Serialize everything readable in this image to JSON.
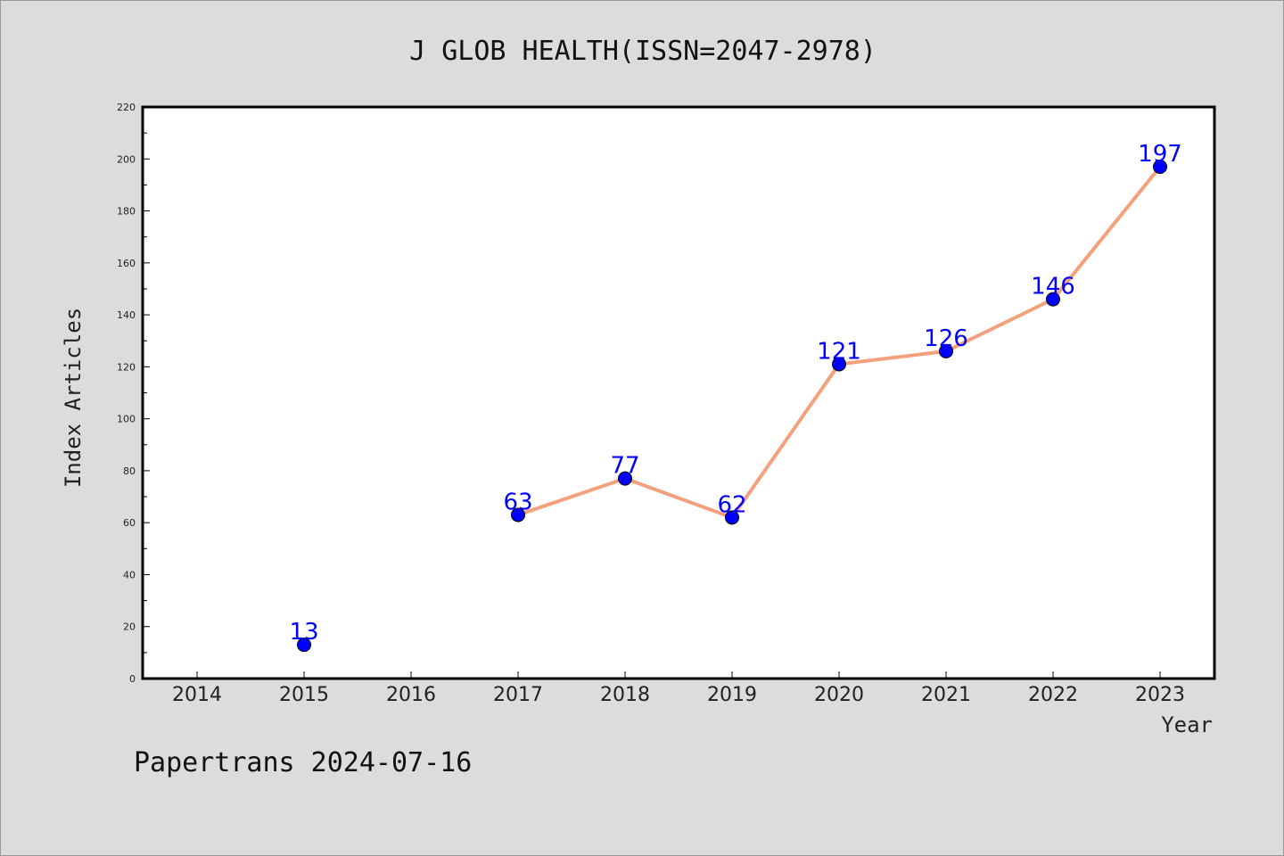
{
  "chart_data": {
    "type": "line",
    "title": "J GLOB HEALTH(ISSN=2047-2978)",
    "xlabel": "Year",
    "ylabel": "Index Articles",
    "categories": [
      "2014",
      "2015",
      "2016",
      "2017",
      "2018",
      "2019",
      "2020",
      "2021",
      "2022",
      "2023"
    ],
    "ylim": [
      0,
      220
    ],
    "yticks": [
      0,
      20,
      40,
      60,
      80,
      100,
      120,
      140,
      160,
      180,
      200,
      220
    ],
    "grid": false,
    "series": [
      {
        "points": [
          {
            "x": "2015",
            "y": 13,
            "label": "13"
          },
          {
            "x": "2017",
            "y": 63,
            "label": "63"
          },
          {
            "x": "2018",
            "y": 77,
            "label": "77"
          },
          {
            "x": "2019",
            "y": 62,
            "label": "62"
          },
          {
            "x": "2020",
            "y": 121,
            "label": "121"
          },
          {
            "x": "2021",
            "y": 126,
            "label": "126"
          },
          {
            "x": "2022",
            "y": 146,
            "label": "146"
          },
          {
            "x": "2023",
            "y": 197,
            "label": "197"
          }
        ],
        "line_segments": [
          [
            "2017",
            "2018",
            "2019",
            "2020",
            "2021",
            "2022",
            "2023"
          ]
        ],
        "line_color": "#f4a07c",
        "marker_color": "#0000ff"
      }
    ]
  },
  "footer": {
    "watermark": "Papertrans 2024-07-16"
  },
  "colors": {
    "background": "#dcdcdc",
    "plot_background": "#ffffff",
    "line": "#f4a07c",
    "marker": "#0000ff",
    "data_label": "#0000ff"
  }
}
